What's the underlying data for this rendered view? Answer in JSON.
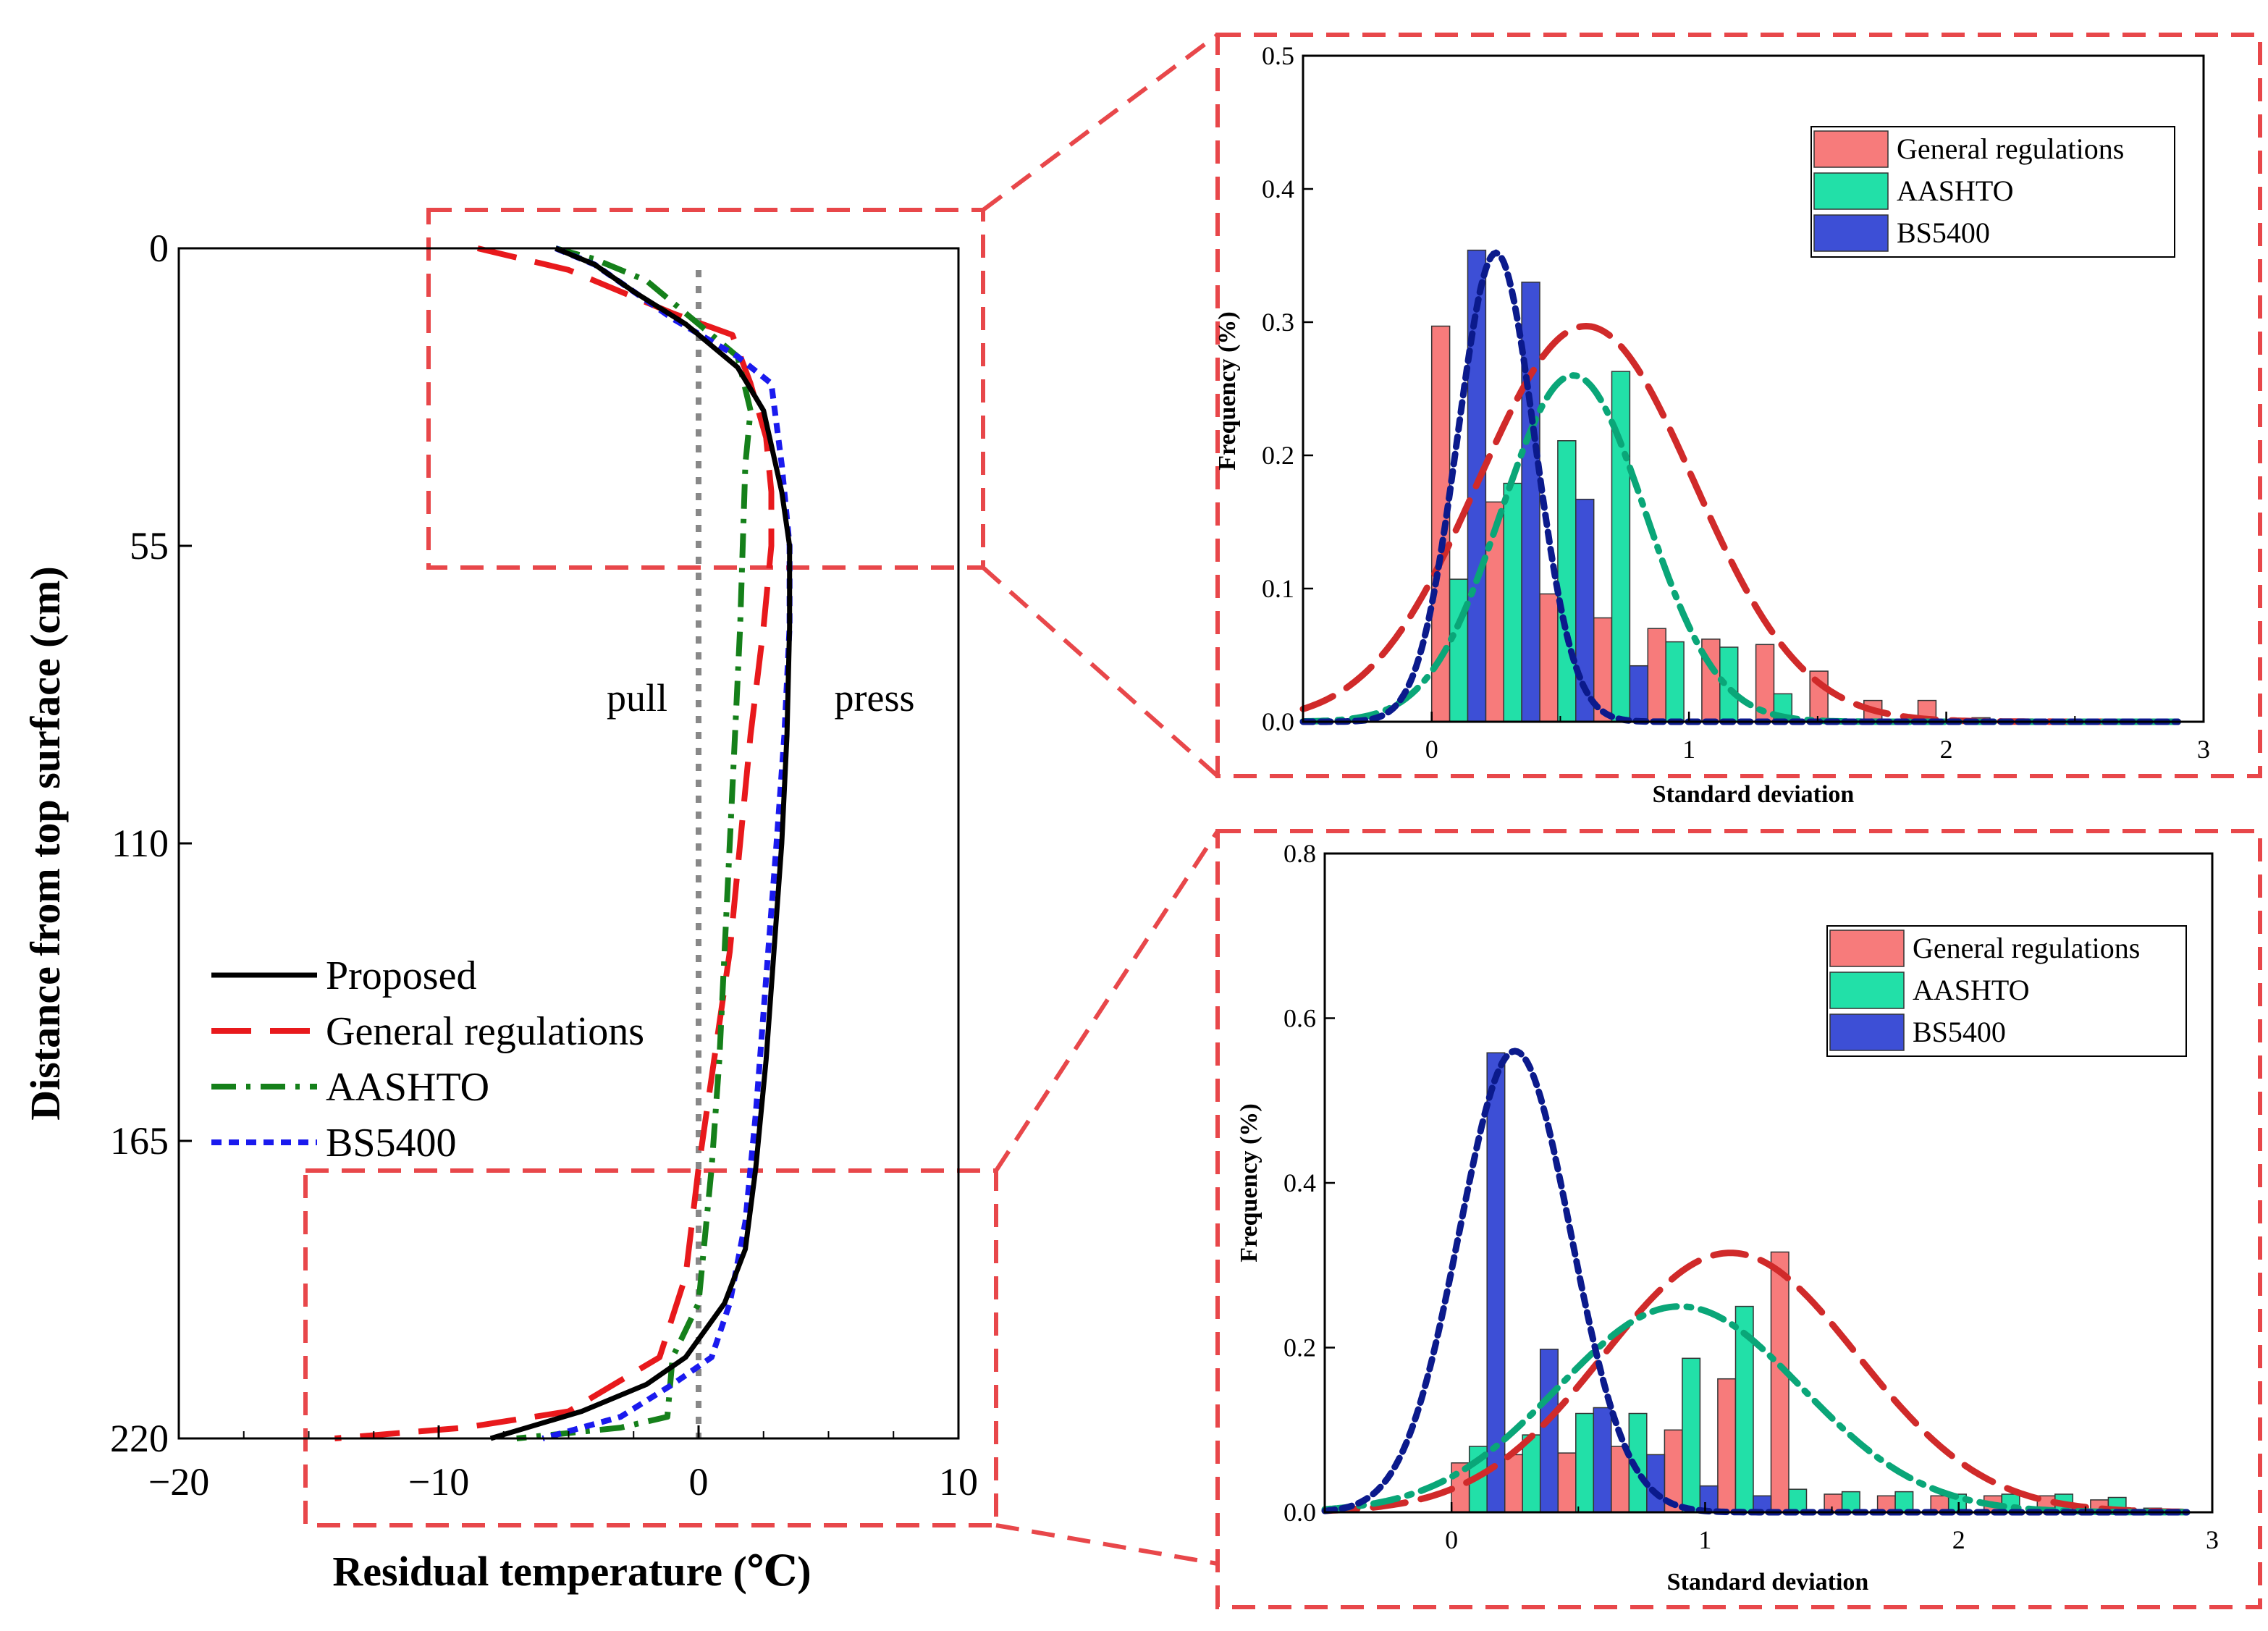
{
  "colors": {
    "proposed": "#000000",
    "general": "#e8191c",
    "aashto": "#15801a",
    "bs5400": "#1a1aee",
    "zoom_box": "#e8474a",
    "hist_general": "#f77b7b",
    "hist_aashto": "#22e0a8",
    "hist_bs5400": "#3d4fd6",
    "fit_general": "#d02a2a",
    "fit_aashto": "#0aa678",
    "fit_bs5400": "#0b1a8c",
    "zero_line": "#888888"
  },
  "chart_data": [
    {
      "id": "main",
      "type": "line",
      "xlabel": "Residual temperature (℃)",
      "ylabel": "Distance from top surface (cm)",
      "xlim": [
        -20,
        10
      ],
      "ylim": [
        0,
        220
      ],
      "y_inverted": true,
      "xticks": [
        -20,
        -10,
        0,
        10
      ],
      "xtick_labels": [
        "−20",
        "−10",
        "0",
        "10"
      ],
      "yticks": [
        0,
        55,
        110,
        165,
        220
      ],
      "annotations": {
        "left": "pull",
        "right": "press"
      },
      "series": [
        {
          "name": "Proposed",
          "key": "proposed",
          "dash": "",
          "x": [
            -5.5,
            -4,
            -2.5,
            -0.5,
            1.5,
            2.5,
            3.2,
            3.5,
            3.5,
            3.4,
            3.2,
            2.9,
            2.6,
            2.2,
            1.8,
            1.0,
            -0.5,
            -2.0,
            -4.5,
            -8.0
          ],
          "y": [
            0,
            3,
            8,
            14,
            22,
            30,
            45,
            55,
            70,
            90,
            110,
            130,
            150,
            170,
            185,
            195,
            205,
            210,
            215,
            220
          ]
        },
        {
          "name": "General regulations",
          "key": "general",
          "dash": "55,26",
          "x": [
            -8.5,
            -5,
            -3,
            -1.0,
            1.3,
            2.0,
            2.6,
            2.8,
            2.8,
            2.5,
            2.0,
            1.6,
            1.2,
            0.6,
            0,
            -0.5,
            -1.5,
            -5.0,
            -9.0,
            -14.0
          ],
          "y": [
            0,
            4,
            8,
            12,
            16,
            25,
            35,
            45,
            55,
            70,
            90,
            110,
            130,
            150,
            170,
            190,
            205,
            215,
            218,
            220
          ]
        },
        {
          "name": "AASHTO",
          "key": "aashto",
          "dash": "34,14,6,14",
          "x": [
            -5.5,
            -4,
            -2,
            -0.5,
            1.5,
            2.0,
            1.8,
            1.7,
            1.6,
            1.4,
            1.2,
            1.0,
            0.8,
            0.5,
            0.2,
            0,
            -1.0,
            -1.2,
            -3.0,
            -7.0
          ],
          "y": [
            0,
            2,
            6,
            12,
            20,
            30,
            40,
            55,
            70,
            90,
            110,
            130,
            150,
            170,
            185,
            195,
            205,
            216,
            218,
            220
          ]
        },
        {
          "name": "BS5400",
          "key": "bs5400",
          "dash": "14,10",
          "x": [
            -5.5,
            -4,
            -2.5,
            -1,
            1.5,
            2.8,
            3.2,
            3.5,
            3.5,
            3.3,
            3.0,
            2.6,
            2.2,
            1.8,
            1.2,
            0.5,
            -1.0,
            -3.0,
            -6.0
          ],
          "y": [
            0,
            3,
            8,
            13,
            20,
            25,
            40,
            55,
            70,
            90,
            110,
            135,
            160,
            180,
            195,
            205,
            210,
            216,
            220
          ]
        }
      ]
    },
    {
      "id": "top_hist",
      "type": "bar",
      "xlabel": "Standard deviation",
      "ylabel": "Frequency (%)",
      "xlim": [
        -0.5,
        3
      ],
      "ylim": [
        0,
        0.5
      ],
      "xticks": [
        0,
        1,
        2,
        3
      ],
      "yticks": [
        0.0,
        0.1,
        0.2,
        0.3,
        0.4,
        0.5
      ],
      "ytick_labels": [
        "0.0",
        "0.1",
        "0.2",
        "0.3",
        "0.4",
        "0.5"
      ],
      "bin_width": 0.07,
      "series": [
        {
          "name": "General regulations",
          "key": "hist_general",
          "x": [
            0.035,
            0.245,
            0.455,
            0.665,
            0.875,
            1.085,
            1.295,
            1.505,
            1.715,
            1.925,
            2.135
          ],
          "values": [
            0.297,
            0.165,
            0.096,
            0.078,
            0.07,
            0.062,
            0.058,
            0.038,
            0.016,
            0.016,
            0.003
          ]
        },
        {
          "name": "AASHTO",
          "key": "hist_aashto",
          "x": [
            0.105,
            0.315,
            0.525,
            0.735,
            0.945,
            1.155,
            1.365
          ],
          "values": [
            0.107,
            0.179,
            0.211,
            0.263,
            0.06,
            0.056,
            0.021
          ]
        },
        {
          "name": "BS5400",
          "key": "hist_bs5400",
          "x": [
            0.175,
            0.385,
            0.595,
            0.805
          ],
          "values": [
            0.354,
            0.33,
            0.167,
            0.042
          ]
        }
      ],
      "fits": [
        {
          "key": "fit_general",
          "mu": 0.6,
          "sigma": 0.42,
          "scale": 0.297,
          "dash": "45,22"
        },
        {
          "key": "fit_aashto",
          "mu": 0.55,
          "sigma": 0.28,
          "scale": 0.26,
          "dash": "34,14,6,14"
        },
        {
          "key": "fit_bs5400",
          "mu": 0.25,
          "sigma": 0.15,
          "scale": 0.352,
          "dash": "14,10"
        }
      ]
    },
    {
      "id": "bottom_hist",
      "type": "bar",
      "xlabel": "Standard deviation",
      "ylabel": "Frequency (%)",
      "xlim": [
        -0.5,
        3
      ],
      "ylim": [
        0,
        0.8
      ],
      "xticks": [
        0,
        1,
        2,
        3
      ],
      "yticks": [
        0.0,
        0.2,
        0.4,
        0.6,
        0.8
      ],
      "ytick_labels": [
        "0.0",
        "0.2",
        "0.4",
        "0.6",
        "0.8"
      ],
      "bin_width": 0.07,
      "series": [
        {
          "name": "General regulations",
          "key": "hist_general",
          "x": [
            0.035,
            0.245,
            0.455,
            0.665,
            0.875,
            1.085,
            1.295,
            1.505,
            1.715,
            1.925,
            2.135,
            2.345,
            2.555,
            2.765
          ],
          "values": [
            0.06,
            0.07,
            0.072,
            0.08,
            0.1,
            0.162,
            0.316,
            0.022,
            0.02,
            0.02,
            0.02,
            0.02,
            0.015,
            0.005
          ]
        },
        {
          "name": "AASHTO",
          "key": "hist_aashto",
          "x": [
            0.105,
            0.315,
            0.525,
            0.735,
            0.945,
            1.155,
            1.365,
            1.575,
            1.785,
            1.995,
            2.205,
            2.415,
            2.625
          ],
          "values": [
            0.08,
            0.094,
            0.12,
            0.12,
            0.187,
            0.25,
            0.028,
            0.025,
            0.025,
            0.022,
            0.022,
            0.022,
            0.018
          ]
        },
        {
          "name": "BS5400",
          "key": "hist_bs5400",
          "x": [
            0.175,
            0.385,
            0.595,
            0.805,
            1.015,
            1.225
          ],
          "values": [
            0.558,
            0.198,
            0.127,
            0.07,
            0.032,
            0.02
          ]
        }
      ],
      "fits": [
        {
          "key": "fit_general",
          "mu": 1.1,
          "sigma": 0.5,
          "scale": 0.315,
          "dash": "45,22"
        },
        {
          "key": "fit_aashto",
          "mu": 0.9,
          "sigma": 0.48,
          "scale": 0.25,
          "dash": "34,14,6,14"
        },
        {
          "key": "fit_bs5400",
          "mu": 0.25,
          "sigma": 0.22,
          "scale": 0.56,
          "dash": "14,10"
        }
      ]
    }
  ]
}
